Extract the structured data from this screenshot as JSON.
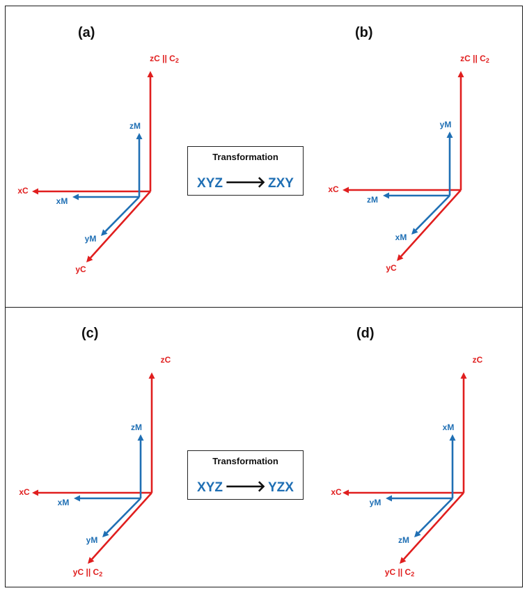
{
  "panels": {
    "a": {
      "label": "(a)",
      "crystal": {
        "z": "zC || C",
        "z_sub": "2",
        "x": "xC",
        "y": "yC",
        "y_sub": ""
      },
      "molecular": {
        "vertical": "zM",
        "horizontal": "xM",
        "diagonal": "yM"
      }
    },
    "b": {
      "label": "(b)",
      "crystal": {
        "z": "zC || C",
        "z_sub": "2",
        "x": "xC",
        "y": "yC",
        "y_sub": ""
      },
      "molecular": {
        "vertical": "yM",
        "horizontal": "zM",
        "diagonal": "xM"
      }
    },
    "c": {
      "label": "(c)",
      "crystal": {
        "z": "zC",
        "z_sub": "",
        "x": "xC",
        "y": "yC || C",
        "y_sub": "2"
      },
      "molecular": {
        "vertical": "zM",
        "horizontal": "xM",
        "diagonal": "yM"
      }
    },
    "d": {
      "label": "(d)",
      "crystal": {
        "z": "zC",
        "z_sub": "",
        "x": "xC",
        "y": "yC || C",
        "y_sub": "2"
      },
      "molecular": {
        "vertical": "xM",
        "horizontal": "yM",
        "diagonal": "zM"
      }
    }
  },
  "transformations": {
    "top": {
      "title": "Transformation",
      "from": "XYZ",
      "to": "ZXY"
    },
    "bottom": {
      "title": "Transformation",
      "from": "XYZ",
      "to": "YZX"
    }
  },
  "colors": {
    "crystal_axes": "#e01e1e",
    "molecular_axes": "#1f6fb4",
    "arrow": "#111111"
  }
}
